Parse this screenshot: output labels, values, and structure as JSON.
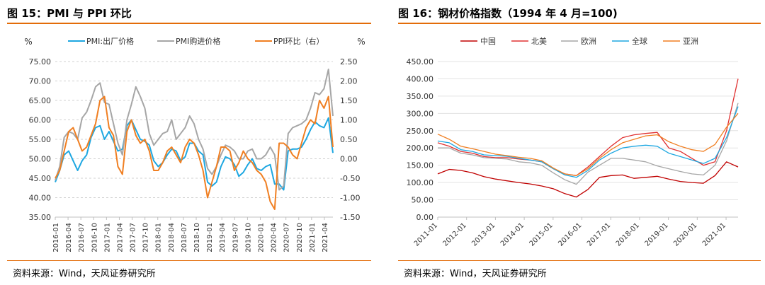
{
  "left": {
    "title": "图 15：PMI 与 PPI 环比",
    "source": "资料来源：Wind，天风证券研究所",
    "chart_data": {
      "type": "line",
      "left_unit": "%",
      "right_unit": "%",
      "ylim": [
        35,
        75
      ],
      "yticks": [
        "35.00",
        "40.00",
        "45.00",
        "50.00",
        "55.00",
        "60.00",
        "65.00",
        "70.00",
        "75.00"
      ],
      "y2lim": [
        -1.5,
        2.5
      ],
      "y2ticks": [
        "-1.50",
        "-1.00",
        "-0.50",
        "0.00",
        "0.50",
        "1.00",
        "1.50",
        "2.00",
        "2.50"
      ],
      "x_start": "2016-01",
      "x_end": "2021-06",
      "xticks": [
        "2016-01",
        "2016-04",
        "2016-07",
        "2016-10",
        "2017-01",
        "2017-04",
        "2017-07",
        "2017-10",
        "2018-01",
        "2018-04",
        "2018-07",
        "2018-10",
        "2019-01",
        "2019-04",
        "2019-07",
        "2019-10",
        "2020-01",
        "2020-04",
        "2020-07",
        "2020-10",
        "2021-01",
        "2021-04"
      ],
      "grid": "horizontal dashed",
      "legend_position": "top",
      "series": [
        {
          "name": "PMI:出厂价格",
          "color": "#1ea7e1",
          "axis": "left",
          "values": [
            44,
            47,
            51,
            52,
            49.5,
            47,
            49.5,
            51,
            55.5,
            58,
            58.5,
            55,
            57,
            54.5,
            52,
            52.5,
            58.5,
            60,
            57.5,
            55,
            54.5,
            53.5,
            49.5,
            48,
            49,
            51,
            52.5,
            52,
            49.5,
            50.5,
            54,
            54,
            52,
            51,
            44,
            43,
            44,
            48,
            50.5,
            50,
            48.5,
            45.5,
            46.5,
            48.5,
            50,
            47.5,
            47,
            48,
            48.5,
            43.5,
            43.5,
            42,
            52,
            52.5,
            52.5,
            53,
            55,
            57.5,
            59.5,
            58.5,
            58,
            60.5,
            51.5
          ]
        },
        {
          "name": "PMI购进价格",
          "color": "#a6a6a6",
          "axis": "left",
          "values": [
            44.5,
            48,
            55.5,
            57,
            56.5,
            55,
            60.5,
            62,
            65,
            68.5,
            69.5,
            64.5,
            64,
            59,
            54,
            51,
            60,
            64,
            68.5,
            66,
            63,
            56.5,
            53.5,
            55,
            56.5,
            57,
            60,
            55,
            56.5,
            58,
            61,
            59,
            55,
            52.5,
            47.5,
            46,
            48,
            51,
            53.5,
            53,
            52,
            50,
            50,
            52,
            52.5,
            50,
            50,
            51,
            53,
            51,
            42,
            43,
            56.5,
            58,
            58.5,
            59,
            60,
            63,
            67,
            66.5,
            68,
            73,
            61
          ]
        },
        {
          "name": "PPI环比（右）",
          "color": "#f07f22",
          "axis": "right",
          "values": [
            -0.5,
            -0.3,
            0.2,
            0.7,
            0.8,
            0.5,
            0.2,
            0.3,
            0.6,
            0.9,
            1.5,
            1.6,
            0.8,
            0.6,
            -0.2,
            -0.4,
            0.7,
            1.0,
            0.6,
            0.4,
            0.5,
            0.2,
            -0.3,
            -0.3,
            -0.1,
            0.2,
            0.3,
            0.1,
            -0.1,
            0.3,
            0.5,
            0.4,
            0.1,
            -0.3,
            -1.0,
            -0.6,
            -0.2,
            0.3,
            0.3,
            0.2,
            -0.3,
            -0.1,
            0.2,
            0.0,
            -0.1,
            -0.3,
            -0.4,
            -0.6,
            -1.1,
            -1.3,
            0.4,
            0.4,
            0.3,
            0.1,
            0.0,
            0.4,
            0.8,
            1.0,
            0.9,
            1.5,
            1.3,
            1.6,
            0.3
          ]
        }
      ]
    }
  },
  "right": {
    "title": "图 16：钢材价格指数（1994 年 4 月=100)",
    "source": "资料来源：Wind，天风证券研究所",
    "chart_data": {
      "type": "line",
      "ylim": [
        0,
        450
      ],
      "yticks": [
        "0.00",
        "50.00",
        "100.00",
        "150.00",
        "200.00",
        "250.00",
        "300.00",
        "350.00",
        "400.00",
        "450.00"
      ],
      "x_start": "2011-01",
      "x_end": "2021-06",
      "xticks": [
        "2011-01",
        "2012-01",
        "2013-01",
        "2014-01",
        "2015-01",
        "2016-01",
        "2017-01",
        "2018-01",
        "2019-01",
        "2020-01",
        "2021-01"
      ],
      "grid": "horizontal solid",
      "legend_position": "top",
      "series": [
        {
          "name": "中国",
          "color": "#c00000",
          "values": [
            125,
            138,
            135,
            128,
            117,
            110,
            105,
            100,
            96,
            90,
            82,
            68,
            58,
            80,
            115,
            120,
            122,
            112,
            115,
            118,
            110,
            103,
            100,
            98,
            120,
            160,
            145
          ]
        },
        {
          "name": "北美",
          "color": "#e03030",
          "values": [
            215,
            205,
            190,
            185,
            175,
            172,
            172,
            168,
            165,
            160,
            140,
            125,
            120,
            145,
            175,
            205,
            230,
            238,
            242,
            245,
            200,
            190,
            170,
            150,
            160,
            250,
            400
          ]
        },
        {
          "name": "欧洲",
          "color": "#a6a6a6",
          "values": [
            200,
            200,
            185,
            180,
            172,
            170,
            168,
            160,
            157,
            150,
            128,
            108,
            95,
            130,
            150,
            170,
            170,
            165,
            160,
            148,
            140,
            132,
            125,
            122,
            150,
            220,
            330
          ]
        },
        {
          "name": "全球",
          "color": "#1ea7e1",
          "values": [
            220,
            215,
            195,
            190,
            180,
            178,
            176,
            170,
            165,
            160,
            140,
            122,
            115,
            135,
            165,
            185,
            200,
            205,
            208,
            205,
            185,
            175,
            165,
            155,
            170,
            230,
            320
          ]
        },
        {
          "name": "亚洲",
          "color": "#f07f22",
          "values": [
            240,
            225,
            205,
            198,
            190,
            182,
            178,
            173,
            170,
            163,
            142,
            125,
            120,
            140,
            170,
            195,
            215,
            225,
            235,
            238,
            218,
            205,
            195,
            190,
            210,
            260,
            300
          ]
        }
      ]
    }
  }
}
